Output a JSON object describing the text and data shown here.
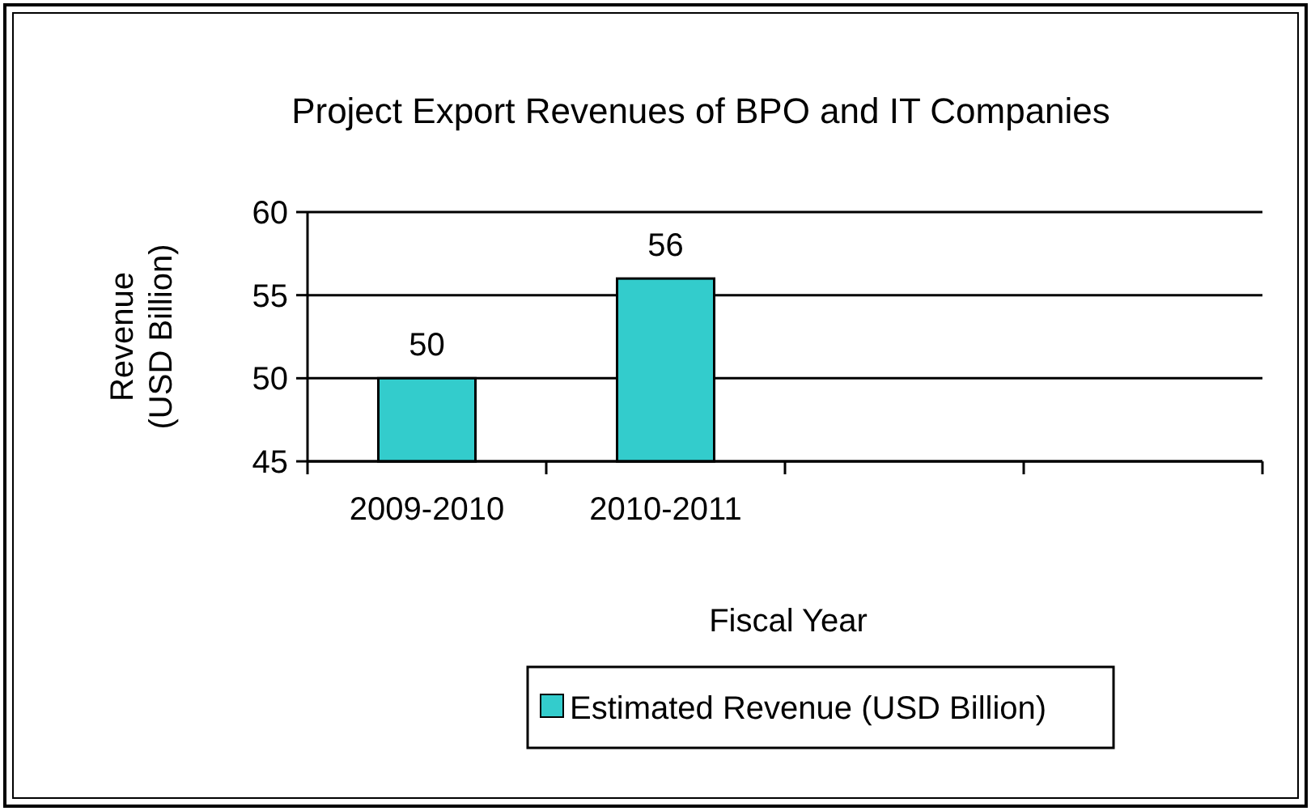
{
  "chart_data": {
    "type": "bar",
    "title": "Project Export Revenues of BPO and IT Companies",
    "xlabel": "Fiscal Year",
    "ylabel": "Revenue (USD Billion)",
    "categories": [
      "2009-2010",
      "2010-2011",
      null,
      null
    ],
    "series": [
      {
        "name": "Estimated Revenue (USD Billion)",
        "color": "#33cccc",
        "values": [
          50,
          56,
          null,
          null
        ]
      }
    ],
    "ylim": [
      45,
      60
    ],
    "yticks": [
      45,
      50,
      55,
      60
    ],
    "grid": "y",
    "legend": "bottom",
    "data_labels": true
  }
}
